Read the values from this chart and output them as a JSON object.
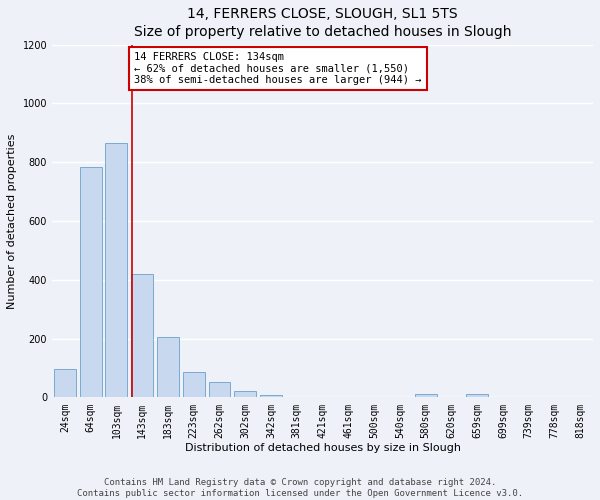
{
  "title": "14, FERRERS CLOSE, SLOUGH, SL1 5TS",
  "subtitle": "Size of property relative to detached houses in Slough",
  "xlabel": "Distribution of detached houses by size in Slough",
  "ylabel": "Number of detached properties",
  "bar_labels": [
    "24sqm",
    "64sqm",
    "103sqm",
    "143sqm",
    "183sqm",
    "223sqm",
    "262sqm",
    "302sqm",
    "342sqm",
    "381sqm",
    "421sqm",
    "461sqm",
    "500sqm",
    "540sqm",
    "580sqm",
    "620sqm",
    "659sqm",
    "699sqm",
    "739sqm",
    "778sqm",
    "818sqm"
  ],
  "bar_values": [
    95,
    785,
    865,
    420,
    205,
    85,
    53,
    22,
    8,
    3,
    2,
    0,
    0,
    0,
    12,
    0,
    12,
    0,
    0,
    0,
    0
  ],
  "bar_color": "#c8d8ee",
  "bar_edge_color": "#7aaad0",
  "property_line_color": "#cc0000",
  "annotation_text": "14 FERRERS CLOSE: 134sqm\n← 62% of detached houses are smaller (1,550)\n38% of semi-detached houses are larger (944) →",
  "annotation_box_color": "#ffffff",
  "annotation_box_edge_color": "#cc0000",
  "ylim": [
    0,
    1200
  ],
  "yticks": [
    0,
    200,
    400,
    600,
    800,
    1000,
    1200
  ],
  "footer_line1": "Contains HM Land Registry data © Crown copyright and database right 2024.",
  "footer_line2": "Contains public sector information licensed under the Open Government Licence v3.0.",
  "background_color": "#eef2f8",
  "plot_bg_color": "#eef2f8",
  "grid_color": "#ffffff",
  "title_fontsize": 10,
  "axis_label_fontsize": 8,
  "tick_fontsize": 7,
  "annotation_fontsize": 7.5,
  "footer_fontsize": 6.5
}
